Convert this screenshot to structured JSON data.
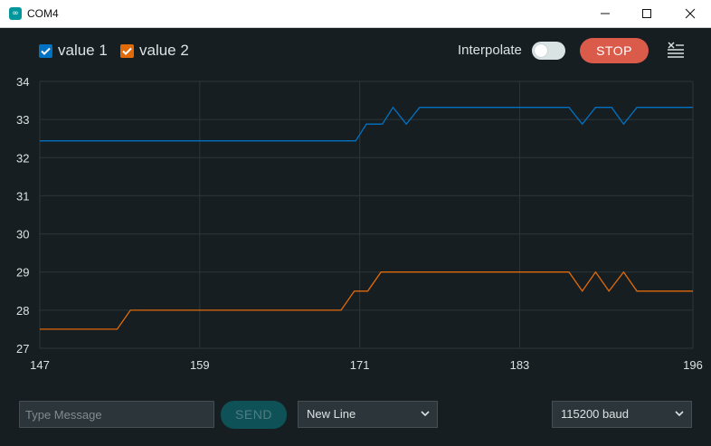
{
  "window": {
    "title": "COM4",
    "app_icon_glyph": "∞"
  },
  "toolbar": {
    "series": [
      {
        "label": "value 1",
        "color": "#0072c3",
        "checked": true
      },
      {
        "label": "value 2",
        "color": "#e06a0a",
        "checked": true
      }
    ],
    "interpolate_label": "Interpolate",
    "interpolate_on": false,
    "stop_label": "STOP",
    "clear_icon": "clear-list-icon"
  },
  "chart_data": {
    "type": "line",
    "xlim": [
      147,
      196
    ],
    "ylim": [
      27,
      34
    ],
    "x_ticks": [
      "147",
      "159",
      "171",
      "183",
      "196"
    ],
    "y_ticks": [
      "27",
      "28",
      "29",
      "30",
      "31",
      "32",
      "33",
      "34"
    ],
    "grid": true,
    "series": [
      {
        "name": "value 1",
        "color": "#0072c3",
        "points": [
          [
            147,
            32.44
          ],
          [
            170.7,
            32.44
          ],
          [
            171.5,
            32.88
          ],
          [
            172.7,
            32.88
          ],
          [
            173.5,
            33.32
          ],
          [
            174.5,
            32.88
          ],
          [
            175.5,
            33.32
          ],
          [
            186.7,
            33.32
          ],
          [
            187.7,
            32.88
          ],
          [
            188.7,
            33.32
          ],
          [
            189.9,
            33.32
          ],
          [
            190.8,
            32.88
          ],
          [
            191.8,
            33.32
          ],
          [
            196,
            33.32
          ]
        ]
      },
      {
        "name": "value 2",
        "color": "#e06a0a",
        "points": [
          [
            147,
            27.5
          ],
          [
            152.8,
            27.5
          ],
          [
            153.8,
            28
          ],
          [
            169.6,
            28
          ],
          [
            170.6,
            28.5
          ],
          [
            171.6,
            28.5
          ],
          [
            172.6,
            29
          ],
          [
            186.7,
            29
          ],
          [
            187.7,
            28.5
          ],
          [
            188.7,
            29
          ],
          [
            189.7,
            28.5
          ],
          [
            190.8,
            29
          ],
          [
            191.8,
            28.5
          ],
          [
            196,
            28.5
          ]
        ]
      }
    ]
  },
  "bottom": {
    "message_placeholder": "Type Message",
    "send_label": "SEND",
    "line_ending": "New Line",
    "baud": "115200 baud"
  }
}
